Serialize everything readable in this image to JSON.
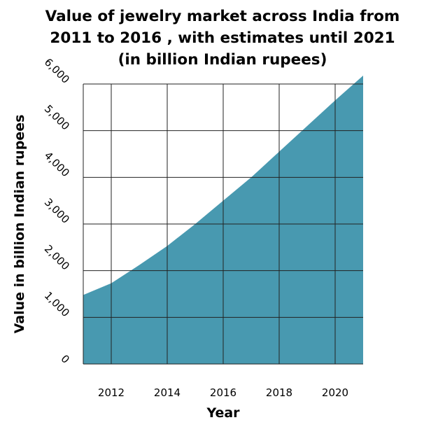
{
  "chart_data": {
    "type": "area",
    "title": [
      "Value of jewelry market across India from",
      "2011 to 2016 , with estimates until 2021",
      "(in billion Indian rupees)"
    ],
    "xlabel": "Year",
    "ylabel": "Value in billion Indian rupees",
    "xlim": [
      2011,
      2021
    ],
    "ylim": [
      0,
      6000
    ],
    "x_ticks": [
      2012,
      2014,
      2016,
      2018,
      2020
    ],
    "x_tick_labels": [
      "2012",
      "2014",
      "2016",
      "2018",
      "2020"
    ],
    "y_ticks": [
      0,
      1000,
      2000,
      3000,
      4000,
      5000,
      6000
    ],
    "y_tick_labels": [
      "0",
      "1,000",
      "2,000",
      "3,000",
      "4,000",
      "5,000",
      "6,000"
    ],
    "grid": true,
    "fill_color": "#4899b0",
    "series": [
      {
        "x": [
          2011,
          2012,
          2013,
          2014,
          2015,
          2016,
          2017,
          2018,
          2019,
          2020,
          2021
        ],
        "values": [
          1480,
          1730,
          2120,
          2530,
          3000,
          3500,
          4000,
          4550,
          5100,
          5650,
          6180
        ]
      }
    ]
  }
}
